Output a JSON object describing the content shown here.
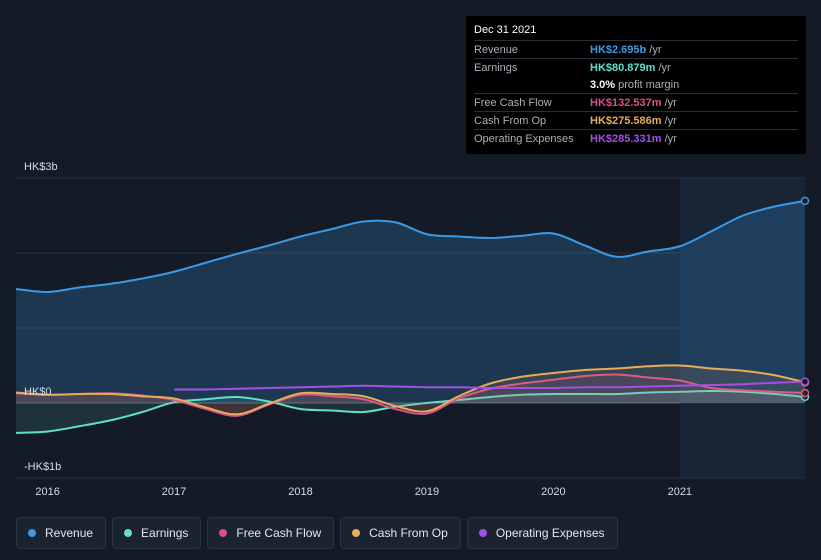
{
  "tooltip": {
    "date": "Dec 31 2021",
    "rows": [
      {
        "label": "Revenue",
        "value": "HK$2.695b",
        "unit": "/yr",
        "color": "#3b9ae8"
      },
      {
        "label": "Earnings",
        "value": "HK$80.879m",
        "unit": "/yr",
        "color": "#5fe0cc"
      },
      {
        "label": "",
        "value": "3.0%",
        "unit": "profit margin",
        "color": "#ffffff"
      },
      {
        "label": "Free Cash Flow",
        "value": "HK$132.537m",
        "unit": "/yr",
        "color": "#d6528c"
      },
      {
        "label": "Cash From Op",
        "value": "HK$275.586m",
        "unit": "/yr",
        "color": "#e9aa5a"
      },
      {
        "label": "Operating Expenses",
        "value": "HK$285.331m",
        "unit": "/yr",
        "color": "#a24fe8"
      }
    ]
  },
  "legend": [
    {
      "label": "Revenue",
      "color": "#3b9ae8"
    },
    {
      "label": "Earnings",
      "color": "#5fe0cc"
    },
    {
      "label": "Free Cash Flow",
      "color": "#d6528c"
    },
    {
      "label": "Cash From Op",
      "color": "#e9aa5a"
    },
    {
      "label": "Operating Expenses",
      "color": "#a24fe8"
    }
  ],
  "chart_data": {
    "type": "area",
    "title": "",
    "xlabel": "",
    "ylabel": "",
    "y_tick_labels": [
      "HK$3b",
      "HK$0",
      "-HK$1b"
    ],
    "x_tick_labels": [
      "2016",
      "2017",
      "2018",
      "2019",
      "2020",
      "2021"
    ],
    "xlim": [
      2015.75,
      2021.99
    ],
    "ylim": [
      -1.0,
      3.0
    ],
    "unit": "HK$ billions",
    "highlight_from": 2021.0,
    "series": [
      {
        "name": "Revenue",
        "color": "#3b9ae8",
        "fill": true,
        "x": [
          2015.75,
          2016.0,
          2016.25,
          2016.5,
          2016.75,
          2017.0,
          2017.25,
          2017.5,
          2017.75,
          2018.0,
          2018.25,
          2018.5,
          2018.75,
          2019.0,
          2019.25,
          2019.5,
          2019.75,
          2020.0,
          2020.25,
          2020.5,
          2020.75,
          2021.0,
          2021.25,
          2021.5,
          2021.75,
          2021.99
        ],
        "values": [
          1.52,
          1.48,
          1.54,
          1.59,
          1.66,
          1.75,
          1.87,
          1.99,
          2.1,
          2.22,
          2.32,
          2.42,
          2.41,
          2.25,
          2.22,
          2.2,
          2.23,
          2.26,
          2.1,
          1.95,
          2.02,
          2.09,
          2.29,
          2.5,
          2.62,
          2.695
        ]
      },
      {
        "name": "Earnings",
        "color": "#5fe0cc",
        "fill": true,
        "x": [
          2015.75,
          2016.0,
          2016.25,
          2016.5,
          2016.75,
          2017.0,
          2017.25,
          2017.5,
          2017.75,
          2018.0,
          2018.25,
          2018.5,
          2018.75,
          2019.0,
          2019.25,
          2019.5,
          2019.75,
          2020.0,
          2020.25,
          2020.5,
          2020.75,
          2021.0,
          2021.25,
          2021.5,
          2021.75,
          2021.99
        ],
        "values": [
          -0.4,
          -0.38,
          -0.31,
          -0.23,
          -0.12,
          0.01,
          0.05,
          0.08,
          0.02,
          -0.08,
          -0.1,
          -0.12,
          -0.05,
          0.0,
          0.04,
          0.08,
          0.11,
          0.12,
          0.12,
          0.12,
          0.14,
          0.15,
          0.16,
          0.15,
          0.12,
          0.081
        ]
      },
      {
        "name": "Free Cash Flow",
        "color": "#d6528c",
        "fill": true,
        "x": [
          2015.75,
          2016.0,
          2016.25,
          2016.5,
          2016.75,
          2017.0,
          2017.25,
          2017.5,
          2017.75,
          2018.0,
          2018.25,
          2018.5,
          2018.75,
          2019.0,
          2019.25,
          2019.5,
          2019.75,
          2020.0,
          2020.25,
          2020.5,
          2020.75,
          2021.0,
          2021.25,
          2021.5,
          2021.75,
          2021.99
        ],
        "values": [
          0.13,
          0.11,
          0.12,
          0.13,
          0.1,
          0.04,
          -0.08,
          -0.17,
          -0.02,
          0.11,
          0.09,
          0.05,
          -0.08,
          -0.14,
          0.06,
          0.19,
          0.26,
          0.31,
          0.36,
          0.38,
          0.34,
          0.3,
          0.2,
          0.17,
          0.15,
          0.133
        ]
      },
      {
        "name": "Cash From Op",
        "color": "#e9aa5a",
        "fill": true,
        "x": [
          2015.75,
          2016.0,
          2016.25,
          2016.5,
          2016.75,
          2017.0,
          2017.25,
          2017.5,
          2017.75,
          2018.0,
          2018.25,
          2018.5,
          2018.75,
          2019.0,
          2019.25,
          2019.5,
          2019.75,
          2020.0,
          2020.25,
          2020.5,
          2020.75,
          2021.0,
          2021.25,
          2021.5,
          2021.75,
          2021.99
        ],
        "values": [
          0.14,
          0.11,
          0.12,
          0.12,
          0.09,
          0.06,
          -0.06,
          -0.15,
          -0.01,
          0.13,
          0.12,
          0.09,
          -0.04,
          -0.11,
          0.09,
          0.26,
          0.35,
          0.4,
          0.44,
          0.46,
          0.49,
          0.5,
          0.46,
          0.43,
          0.37,
          0.276
        ]
      },
      {
        "name": "Operating Expenses",
        "color": "#a24fe8",
        "fill": false,
        "x": [
          2017.0,
          2017.25,
          2017.5,
          2017.75,
          2018.0,
          2018.25,
          2018.5,
          2018.75,
          2019.0,
          2019.25,
          2019.5,
          2019.75,
          2020.0,
          2020.25,
          2020.5,
          2020.75,
          2021.0,
          2021.25,
          2021.5,
          2021.75,
          2021.99
        ],
        "values": [
          0.18,
          0.18,
          0.19,
          0.2,
          0.21,
          0.22,
          0.23,
          0.22,
          0.21,
          0.21,
          0.2,
          0.2,
          0.2,
          0.21,
          0.21,
          0.22,
          0.23,
          0.24,
          0.25,
          0.27,
          0.285
        ]
      }
    ]
  }
}
